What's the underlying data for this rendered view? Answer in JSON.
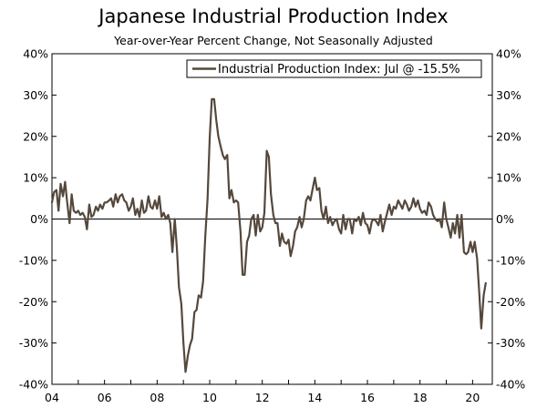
{
  "chart_data": {
    "type": "line",
    "title": "Japanese Industrial Production Index",
    "subtitle": "Year-over-Year Percent Change, Not Seasonally Adjusted",
    "xlabel": "",
    "ylabel": "",
    "xlim": [
      2004.0,
      2020.75
    ],
    "ylim": [
      -40,
      40
    ],
    "y_ticks": [
      -40,
      -30,
      -20,
      -10,
      0,
      10,
      20,
      30,
      40
    ],
    "y_tick_labels": [
      "-40%",
      "-30%",
      "-20%",
      "-10%",
      "0%",
      "10%",
      "20%",
      "30%",
      "40%"
    ],
    "x_ticks": [
      2004,
      2006,
      2008,
      2010,
      2012,
      2014,
      2016,
      2018,
      2020
    ],
    "x_tick_labels": [
      "04",
      "06",
      "08",
      "10",
      "12",
      "14",
      "16",
      "18",
      "20"
    ],
    "grid": false,
    "zero_line": true,
    "legend_position": "top-right",
    "colors": {
      "series": "#54483c",
      "axis": "#000000"
    },
    "series": [
      {
        "name": "Industrial Production Index: Jul @ -15.5%",
        "points": [
          [
            2004.0,
            4.0
          ],
          [
            2004.08,
            6.5
          ],
          [
            2004.17,
            7.0
          ],
          [
            2004.25,
            2.0
          ],
          [
            2004.33,
            8.5
          ],
          [
            2004.42,
            5.5
          ],
          [
            2004.5,
            9.0
          ],
          [
            2004.58,
            4.0
          ],
          [
            2004.67,
            -1.0
          ],
          [
            2004.75,
            6.0
          ],
          [
            2004.83,
            2.0
          ],
          [
            2004.92,
            1.5
          ],
          [
            2005.0,
            2.0
          ],
          [
            2005.08,
            1.0
          ],
          [
            2005.17,
            1.5
          ],
          [
            2005.25,
            0.5
          ],
          [
            2005.33,
            -2.5
          ],
          [
            2005.42,
            3.5
          ],
          [
            2005.5,
            0.5
          ],
          [
            2005.58,
            1.0
          ],
          [
            2005.67,
            3.0
          ],
          [
            2005.75,
            2.0
          ],
          [
            2005.83,
            3.5
          ],
          [
            2005.92,
            2.5
          ],
          [
            2006.0,
            4.0
          ],
          [
            2006.08,
            4.0
          ],
          [
            2006.17,
            4.5
          ],
          [
            2006.25,
            5.0
          ],
          [
            2006.33,
            3.0
          ],
          [
            2006.42,
            6.0
          ],
          [
            2006.5,
            4.0
          ],
          [
            2006.58,
            5.5
          ],
          [
            2006.67,
            6.0
          ],
          [
            2006.75,
            4.5
          ],
          [
            2006.83,
            4.0
          ],
          [
            2006.92,
            2.0
          ],
          [
            2007.0,
            3.0
          ],
          [
            2007.08,
            5.0
          ],
          [
            2007.17,
            1.0
          ],
          [
            2007.25,
            2.5
          ],
          [
            2007.33,
            0.5
          ],
          [
            2007.42,
            4.5
          ],
          [
            2007.5,
            1.5
          ],
          [
            2007.58,
            2.0
          ],
          [
            2007.67,
            5.5
          ],
          [
            2007.75,
            3.0
          ],
          [
            2007.83,
            2.5
          ],
          [
            2007.92,
            4.5
          ],
          [
            2008.0,
            2.5
          ],
          [
            2008.08,
            5.5
          ],
          [
            2008.17,
            0.5
          ],
          [
            2008.25,
            1.5
          ],
          [
            2008.33,
            0.0
          ],
          [
            2008.42,
            1.0
          ],
          [
            2008.5,
            -1.0
          ],
          [
            2008.58,
            -8.0
          ],
          [
            2008.67,
            0.0
          ],
          [
            2008.75,
            -7.0
          ],
          [
            2008.83,
            -16.5
          ],
          [
            2008.92,
            -20.5
          ],
          [
            2009.0,
            -30.0
          ],
          [
            2009.08,
            -37.0
          ],
          [
            2009.17,
            -33.0
          ],
          [
            2009.25,
            -30.5
          ],
          [
            2009.33,
            -29.0
          ],
          [
            2009.42,
            -22.5
          ],
          [
            2009.5,
            -22.0
          ],
          [
            2009.58,
            -18.5
          ],
          [
            2009.67,
            -19.0
          ],
          [
            2009.75,
            -15.0
          ],
          [
            2009.83,
            -4.5
          ],
          [
            2009.92,
            5.0
          ],
          [
            2010.0,
            19.5
          ],
          [
            2010.08,
            29.0
          ],
          [
            2010.17,
            29.0
          ],
          [
            2010.25,
            24.0
          ],
          [
            2010.33,
            20.0
          ],
          [
            2010.42,
            17.5
          ],
          [
            2010.5,
            15.5
          ],
          [
            2010.58,
            14.5
          ],
          [
            2010.67,
            15.5
          ],
          [
            2010.75,
            5.0
          ],
          [
            2010.83,
            7.0
          ],
          [
            2010.92,
            4.0
          ],
          [
            2011.0,
            4.5
          ],
          [
            2011.08,
            4.0
          ],
          [
            2011.17,
            -3.0
          ],
          [
            2011.25,
            -13.5
          ],
          [
            2011.33,
            -13.5
          ],
          [
            2011.42,
            -5.5
          ],
          [
            2011.5,
            -4.0
          ],
          [
            2011.58,
            0.0
          ],
          [
            2011.67,
            1.0
          ],
          [
            2011.75,
            -4.0
          ],
          [
            2011.83,
            1.0
          ],
          [
            2011.92,
            -3.0
          ],
          [
            2012.0,
            -2.0
          ],
          [
            2012.08,
            1.5
          ],
          [
            2012.17,
            16.5
          ],
          [
            2012.25,
            15.0
          ],
          [
            2012.33,
            6.0
          ],
          [
            2012.42,
            1.0
          ],
          [
            2012.5,
            -1.0
          ],
          [
            2012.58,
            -1.0
          ],
          [
            2012.67,
            -6.5
          ],
          [
            2012.75,
            -3.5
          ],
          [
            2012.83,
            -5.5
          ],
          [
            2012.92,
            -6.0
          ],
          [
            2013.0,
            -5.0
          ],
          [
            2013.08,
            -9.0
          ],
          [
            2013.17,
            -6.5
          ],
          [
            2013.25,
            -3.0
          ],
          [
            2013.33,
            -2.0
          ],
          [
            2013.42,
            0.5
          ],
          [
            2013.5,
            -2.0
          ],
          [
            2013.58,
            0.0
          ],
          [
            2013.67,
            4.5
          ],
          [
            2013.75,
            5.5
          ],
          [
            2013.83,
            4.5
          ],
          [
            2013.92,
            7.5
          ],
          [
            2014.0,
            10.0
          ],
          [
            2014.08,
            7.0
          ],
          [
            2014.17,
            7.5
          ],
          [
            2014.25,
            2.0
          ],
          [
            2014.33,
            0.0
          ],
          [
            2014.42,
            3.0
          ],
          [
            2014.5,
            -1.0
          ],
          [
            2014.58,
            0.5
          ],
          [
            2014.67,
            -1.5
          ],
          [
            2014.75,
            -0.5
          ],
          [
            2014.83,
            0.0
          ],
          [
            2014.92,
            -2.5
          ],
          [
            2015.0,
            -3.5
          ],
          [
            2015.08,
            1.0
          ],
          [
            2015.17,
            -2.5
          ],
          [
            2015.25,
            0.0
          ],
          [
            2015.33,
            0.0
          ],
          [
            2015.42,
            -3.5
          ],
          [
            2015.5,
            0.0
          ],
          [
            2015.58,
            -0.5
          ],
          [
            2015.67,
            0.5
          ],
          [
            2015.75,
            -1.5
          ],
          [
            2015.83,
            1.5
          ],
          [
            2015.92,
            -1.0
          ],
          [
            2016.0,
            -1.5
          ],
          [
            2016.08,
            -3.5
          ],
          [
            2016.17,
            -0.5
          ],
          [
            2016.25,
            0.0
          ],
          [
            2016.33,
            -0.5
          ],
          [
            2016.42,
            -1.5
          ],
          [
            2016.5,
            1.0
          ],
          [
            2016.58,
            -3.0
          ],
          [
            2016.67,
            -0.5
          ],
          [
            2016.75,
            1.5
          ],
          [
            2016.83,
            3.5
          ],
          [
            2016.92,
            1.0
          ],
          [
            2017.0,
            3.0
          ],
          [
            2017.08,
            2.5
          ],
          [
            2017.17,
            4.5
          ],
          [
            2017.25,
            3.5
          ],
          [
            2017.33,
            2.5
          ],
          [
            2017.42,
            4.5
          ],
          [
            2017.5,
            3.5
          ],
          [
            2017.58,
            2.0
          ],
          [
            2017.67,
            3.0
          ],
          [
            2017.75,
            5.0
          ],
          [
            2017.83,
            3.0
          ],
          [
            2017.92,
            4.5
          ],
          [
            2018.0,
            2.5
          ],
          [
            2018.08,
            1.5
          ],
          [
            2018.17,
            2.0
          ],
          [
            2018.25,
            1.0
          ],
          [
            2018.33,
            4.0
          ],
          [
            2018.42,
            3.0
          ],
          [
            2018.5,
            1.0
          ],
          [
            2018.58,
            0.0
          ],
          [
            2018.67,
            -0.5
          ],
          [
            2018.75,
            0.0
          ],
          [
            2018.83,
            -2.0
          ],
          [
            2018.92,
            4.0
          ],
          [
            2019.0,
            0.0
          ],
          [
            2019.08,
            -2.0
          ],
          [
            2019.17,
            -4.5
          ],
          [
            2019.25,
            -1.0
          ],
          [
            2019.33,
            -3.5
          ],
          [
            2019.42,
            1.0
          ],
          [
            2019.5,
            -4.5
          ],
          [
            2019.58,
            1.0
          ],
          [
            2019.67,
            -8.0
          ],
          [
            2019.75,
            -8.5
          ],
          [
            2019.83,
            -8.0
          ],
          [
            2019.92,
            -5.5
          ],
          [
            2020.0,
            -8.0
          ],
          [
            2020.08,
            -5.5
          ],
          [
            2020.17,
            -9.5
          ],
          [
            2020.25,
            -17.5
          ],
          [
            2020.33,
            -26.5
          ],
          [
            2020.42,
            -18.5
          ],
          [
            2020.5,
            -15.5
          ]
        ]
      }
    ]
  }
}
